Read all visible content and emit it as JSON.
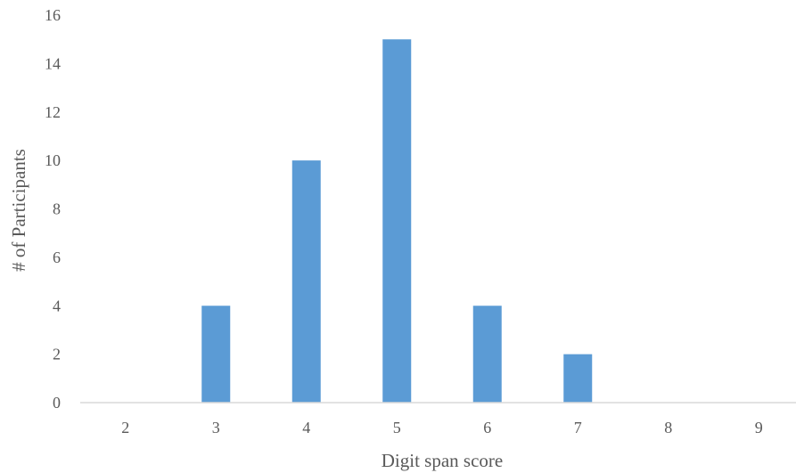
{
  "chart_data": {
    "type": "bar",
    "title": "",
    "xlabel": "Digit span score",
    "ylabel": "# of Participants",
    "categories": [
      "2",
      "3",
      "4",
      "5",
      "6",
      "7",
      "8",
      "9"
    ],
    "values": [
      0,
      4,
      10,
      15,
      4,
      2,
      0,
      0
    ],
    "ylim": [
      0,
      16
    ],
    "yticks": [
      0,
      2,
      4,
      6,
      8,
      10,
      12,
      14,
      16
    ],
    "grid": false,
    "legend": "none",
    "bar_color": "#5b9bd5"
  }
}
